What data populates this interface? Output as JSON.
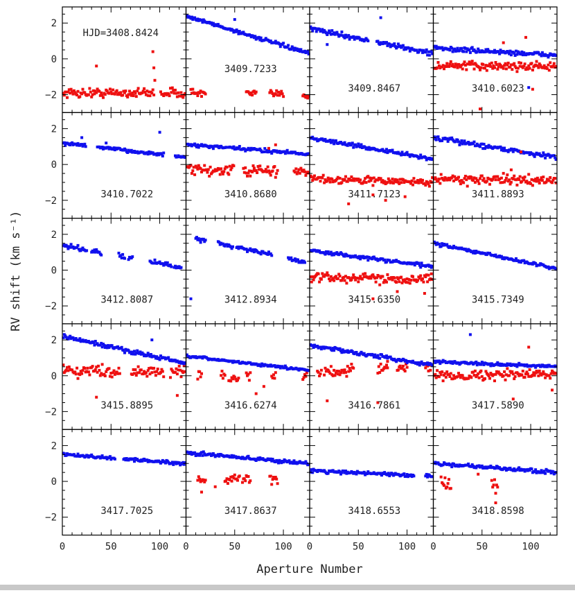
{
  "chart_data": {
    "type": "scatter",
    "title": "",
    "xlabel": "Aperture Number",
    "ylabel": "RV shift (km s⁻¹)",
    "xlim": [
      0,
      127
    ],
    "ylim": [
      -3.0,
      2.9
    ],
    "xticks": [
      0,
      50,
      100
    ],
    "yticks": [
      -2,
      0,
      2
    ],
    "xtick_labels": [
      "0",
      "50",
      "100"
    ],
    "ytick_labels": [
      "−2",
      "0",
      "2"
    ],
    "grid": false,
    "layout": "5 rows x 4 columns, shared axes",
    "colors": {
      "blue": "#1010ee",
      "red": "#ee1010",
      "frame": "#000000"
    },
    "series_names": [
      "blue",
      "red"
    ],
    "first_panel_prefix": "HJD=",
    "panels": [
      {
        "label": "3408.8424",
        "blue": null,
        "red": {
          "start": -1.9,
          "end": -1.9,
          "scatter": 0.3,
          "gaps": [
            [
              95,
              100
            ]
          ]
        }
      },
      {
        "label": "3409.7233",
        "blue": {
          "start": 2.4,
          "end": 0.3,
          "scatter": 0.12
        },
        "red": {
          "start": -1.9,
          "end": -2.0,
          "scatter": 0.25,
          "ranges": [
            [
              5,
              20
            ],
            [
              62,
              72
            ],
            [
              86,
              100
            ],
            [
              120,
              127
            ]
          ]
        }
      },
      {
        "label": "3409.8467",
        "blue": {
          "start": 1.7,
          "end": 0.3,
          "scatter": 0.15,
          "gaps": [
            [
              60,
              68
            ]
          ]
        },
        "red": null
      },
      {
        "label": "3410.6023",
        "blue": {
          "start": 0.6,
          "end": 0.2,
          "scatter": 0.15
        },
        "red": {
          "start": -0.4,
          "end": -0.4,
          "scatter": 0.3
        }
      },
      {
        "label": "3410.7022",
        "blue": {
          "start": 1.2,
          "end": 0.4,
          "scatter": 0.1,
          "gaps": [
            [
              25,
              35
            ],
            [
              105,
              115
            ]
          ]
        },
        "red": null
      },
      {
        "label": "3410.8680",
        "blue": {
          "start": 1.1,
          "end": 0.6,
          "scatter": 0.12
        },
        "red": {
          "start": -0.3,
          "end": -0.4,
          "scatter": 0.35,
          "gaps": [
            [
              50,
              58
            ],
            [
              95,
              110
            ]
          ]
        }
      },
      {
        "label": "3411.7123",
        "blue": {
          "start": 1.5,
          "end": 0.3,
          "scatter": 0.12
        },
        "red": {
          "start": -0.8,
          "end": -1.0,
          "scatter": 0.25
        }
      },
      {
        "label": "3411.8893",
        "blue": {
          "start": 1.5,
          "end": 0.4,
          "scatter": 0.15
        },
        "red": {
          "start": -0.8,
          "end": -0.9,
          "scatter": 0.3
        }
      },
      {
        "label": "3412.8087",
        "blue": {
          "start": 1.4,
          "end": 0.1,
          "scatter": 0.15,
          "ranges": [
            [
              0,
              25
            ],
            [
              30,
              40
            ],
            [
              58,
              64
            ],
            [
              68,
              72
            ],
            [
              90,
              112
            ],
            [
              115,
              122
            ]
          ]
        },
        "red": null
      },
      {
        "label": "3412.8934",
        "blue": {
          "start": 1.9,
          "end": 0.4,
          "scatter": 0.15,
          "ranges": [
            [
              10,
              20
            ],
            [
              33,
              48
            ],
            [
              52,
              88
            ],
            [
              105,
              122
            ]
          ]
        },
        "red": null
      },
      {
        "label": "3415.6350",
        "blue": {
          "start": 1.1,
          "end": 0.2,
          "scatter": 0.12
        },
        "red": {
          "start": -0.4,
          "end": -0.5,
          "scatter": 0.3
        }
      },
      {
        "label": "3415.7349",
        "blue": {
          "start": 1.5,
          "end": 0.1,
          "scatter": 0.1
        },
        "red": null
      },
      {
        "label": "3415.8895",
        "blue": {
          "start": 2.2,
          "end": 0.7,
          "scatter": 0.15
        },
        "red": {
          "start": 0.3,
          "end": 0.2,
          "scatter": 0.35,
          "gaps": [
            [
              60,
              70
            ],
            [
              105,
              110
            ]
          ]
        }
      },
      {
        "label": "3416.6274",
        "blue": {
          "start": 1.1,
          "end": 0.3,
          "scatter": 0.08
        },
        "red": {
          "start": 0.0,
          "end": -0.2,
          "scatter": 0.35,
          "ranges": [
            [
              12,
              16
            ],
            [
              36,
              40
            ],
            [
              44,
              54
            ],
            [
              62,
              66
            ],
            [
              88,
              92
            ],
            [
              120,
              124
            ]
          ]
        }
      },
      {
        "label": "3416.7861",
        "blue": {
          "start": 1.7,
          "end": 0.6,
          "scatter": 0.12
        },
        "red": {
          "start": 0.2,
          "end": 0.5,
          "scatter": 0.35,
          "ranges": [
            [
              8,
              12
            ],
            [
              15,
              45
            ],
            [
              70,
              80
            ],
            [
              90,
              100
            ],
            [
              118,
              124
            ]
          ]
        }
      },
      {
        "label": "3417.5890",
        "blue": {
          "start": 0.8,
          "end": 0.5,
          "scatter": 0.1
        },
        "red": {
          "start": 0.0,
          "end": 0.1,
          "scatter": 0.3
        }
      },
      {
        "label": "3417.7025",
        "blue": {
          "start": 1.5,
          "end": 1.0,
          "scatter": 0.1,
          "gaps": [
            [
              55,
              62
            ]
          ]
        },
        "red": null
      },
      {
        "label": "3417.8637",
        "blue": {
          "start": 1.6,
          "end": 1.0,
          "scatter": 0.12
        },
        "red": {
          "start": 0.1,
          "end": 0.1,
          "scatter": 0.25,
          "ranges": [
            [
              12,
              20
            ],
            [
              40,
              55
            ],
            [
              58,
              66
            ],
            [
              86,
              94
            ]
          ]
        }
      },
      {
        "label": "3418.6553",
        "blue": {
          "start": 0.6,
          "end": 0.3,
          "scatter": 0.12,
          "gaps": [
            [
              108,
              118
            ]
          ]
        },
        "red": null
      },
      {
        "label": "3418.8598",
        "blue": {
          "start": 1.0,
          "end": 0.5,
          "scatter": 0.12
        },
        "red": {
          "start": -0.1,
          "end": -0.3,
          "scatter": 0.4,
          "ranges": [
            [
              8,
              18
            ],
            [
              60,
              66
            ]
          ]
        }
      }
    ],
    "outliers": [
      {
        "panel": 0,
        "series": "red",
        "points": [
          [
            35,
            -0.4
          ],
          [
            93,
            0.4
          ],
          [
            94,
            -0.5
          ],
          [
            95,
            -1.2
          ]
        ]
      },
      {
        "panel": 1,
        "series": "blue",
        "points": [
          [
            50,
            2.2
          ]
        ]
      },
      {
        "panel": 2,
        "series": "blue",
        "points": [
          [
            18,
            0.8
          ],
          [
            73,
            2.3
          ],
          [
            60,
            1.0
          ]
        ]
      },
      {
        "panel": 3,
        "series": "red",
        "points": [
          [
            48,
            -2.8
          ],
          [
            95,
            1.2
          ],
          [
            102,
            -1.7
          ],
          [
            72,
            0.9
          ]
        ]
      },
      {
        "panel": 3,
        "series": "blue",
        "points": [
          [
            98,
            -1.6
          ]
        ]
      },
      {
        "panel": 4,
        "series": "blue",
        "points": [
          [
            100,
            1.8
          ],
          [
            20,
            1.5
          ],
          [
            45,
            1.2
          ]
        ]
      },
      {
        "panel": 5,
        "series": "red",
        "points": [
          [
            85,
            0.9
          ],
          [
            70,
            -0.2
          ],
          [
            92,
            1.1
          ]
        ]
      },
      {
        "panel": 6,
        "series": "red",
        "points": [
          [
            40,
            -2.2
          ],
          [
            65,
            -1.7
          ],
          [
            78,
            -2.0
          ],
          [
            98,
            -1.8
          ]
        ]
      },
      {
        "panel": 7,
        "series": "red",
        "points": [
          [
            108,
            -0.9
          ],
          [
            90,
            0.7
          ],
          [
            80,
            -0.3
          ]
        ]
      },
      {
        "panel": 9,
        "series": "blue",
        "points": [
          [
            5,
            -1.6
          ]
        ]
      },
      {
        "panel": 10,
        "series": "red",
        "points": [
          [
            65,
            -1.6
          ],
          [
            118,
            -1.3
          ],
          [
            90,
            -1.2
          ]
        ]
      },
      {
        "panel": 12,
        "series": "blue",
        "points": [
          [
            92,
            2.0
          ]
        ]
      },
      {
        "panel": 12,
        "series": "red",
        "points": [
          [
            35,
            -1.2
          ],
          [
            118,
            -1.1
          ]
        ]
      },
      {
        "panel": 13,
        "series": "red",
        "points": [
          [
            72,
            -1.0
          ],
          [
            80,
            -0.6
          ]
        ]
      },
      {
        "panel": 14,
        "series": "red",
        "points": [
          [
            18,
            -1.4
          ],
          [
            70,
            -1.5
          ],
          [
            80,
            0.8
          ]
        ]
      },
      {
        "panel": 15,
        "series": "blue",
        "points": [
          [
            38,
            2.3
          ]
        ]
      },
      {
        "panel": 15,
        "series": "red",
        "points": [
          [
            82,
            -1.3
          ],
          [
            98,
            1.6
          ],
          [
            122,
            -0.8
          ]
        ]
      },
      {
        "panel": 17,
        "series": "red",
        "points": [
          [
            16,
            -0.6
          ],
          [
            30,
            -0.3
          ]
        ]
      },
      {
        "panel": 19,
        "series": "red",
        "points": [
          [
            64,
            -1.2
          ],
          [
            46,
            0.4
          ]
        ]
      }
    ]
  }
}
